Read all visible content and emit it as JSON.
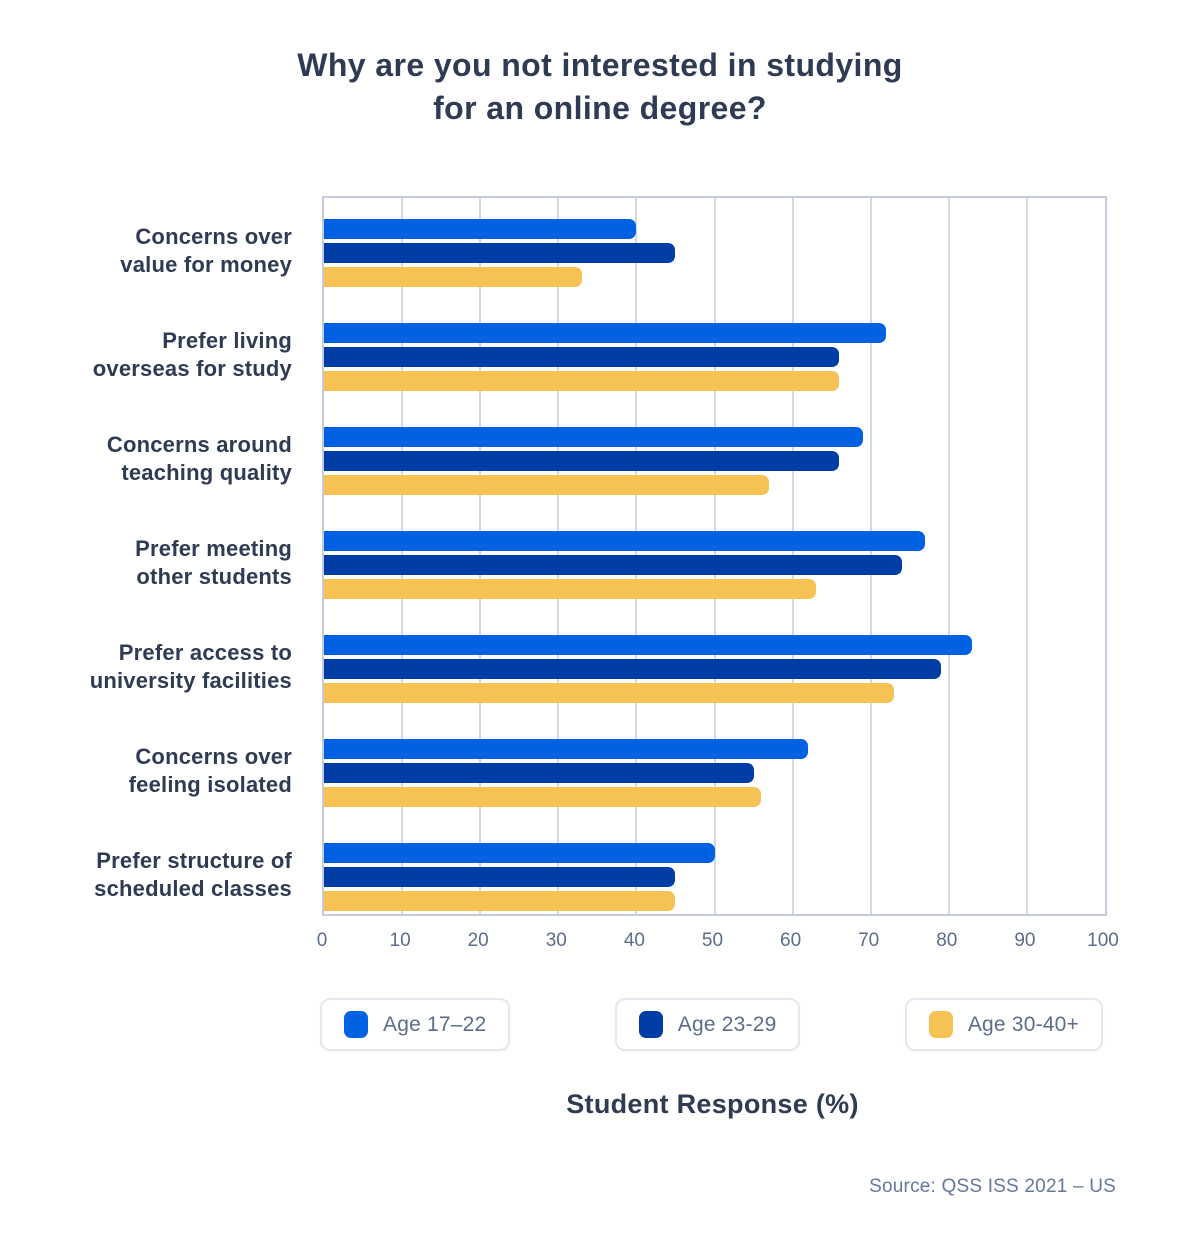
{
  "page": {
    "title_line1": "Why are you not interested in studying",
    "title_line2": "for an online degree?",
    "x_axis_title": "Student Response (%)",
    "source": "Source: QSS ISS 2021 – US"
  },
  "colors": {
    "series1": "#0062E3",
    "series2": "#003DA5",
    "series3": "#F5C253",
    "heading_text": "#2F3A53",
    "muted_text": "#5D6C8B",
    "source_text": "#67769C",
    "grid_line": "#D3D7E2",
    "plot_border": "#C6CBD9",
    "legend_border": "#E4E7EE",
    "background": "#FFFFFF"
  },
  "chart_data": {
    "type": "bar",
    "orientation": "horizontal",
    "title": "Why are you not interested in studying for an online degree?",
    "xlabel": "Student Response (%)",
    "ylabel": "",
    "xlim": [
      0,
      100
    ],
    "x_ticks": [
      0,
      10,
      20,
      30,
      40,
      50,
      60,
      70,
      80,
      90,
      100
    ],
    "grid": true,
    "legend_position": "bottom",
    "categories": [
      "Concerns over value for money",
      "Prefer living overseas for study",
      "Concerns around teaching quality",
      "Prefer meeting other students",
      "Prefer access to university facilities",
      "Concerns over feeling isolated",
      "Prefer structure of scheduled classes"
    ],
    "category_lines": [
      [
        "Concerns over",
        "value for money"
      ],
      [
        "Prefer living",
        "overseas for study"
      ],
      [
        "Concerns around",
        "teaching quality"
      ],
      [
        "Prefer meeting",
        "other students"
      ],
      [
        "Prefer access to",
        "university facilities"
      ],
      [
        "Concerns over",
        "feeling isolated"
      ],
      [
        "Prefer structure of",
        "scheduled classes"
      ]
    ],
    "series": [
      {
        "name": "Age 17–22",
        "color": "#0062E3",
        "values": [
          40,
          72,
          69,
          77,
          83,
          62,
          50
        ]
      },
      {
        "name": "Age 23-29",
        "color": "#003DA5",
        "values": [
          45,
          66,
          66,
          74,
          79,
          55,
          45
        ]
      },
      {
        "name": "Age 30-40+",
        "color": "#F5C253",
        "values": [
          33,
          66,
          57,
          63,
          73,
          56,
          45
        ]
      }
    ]
  }
}
